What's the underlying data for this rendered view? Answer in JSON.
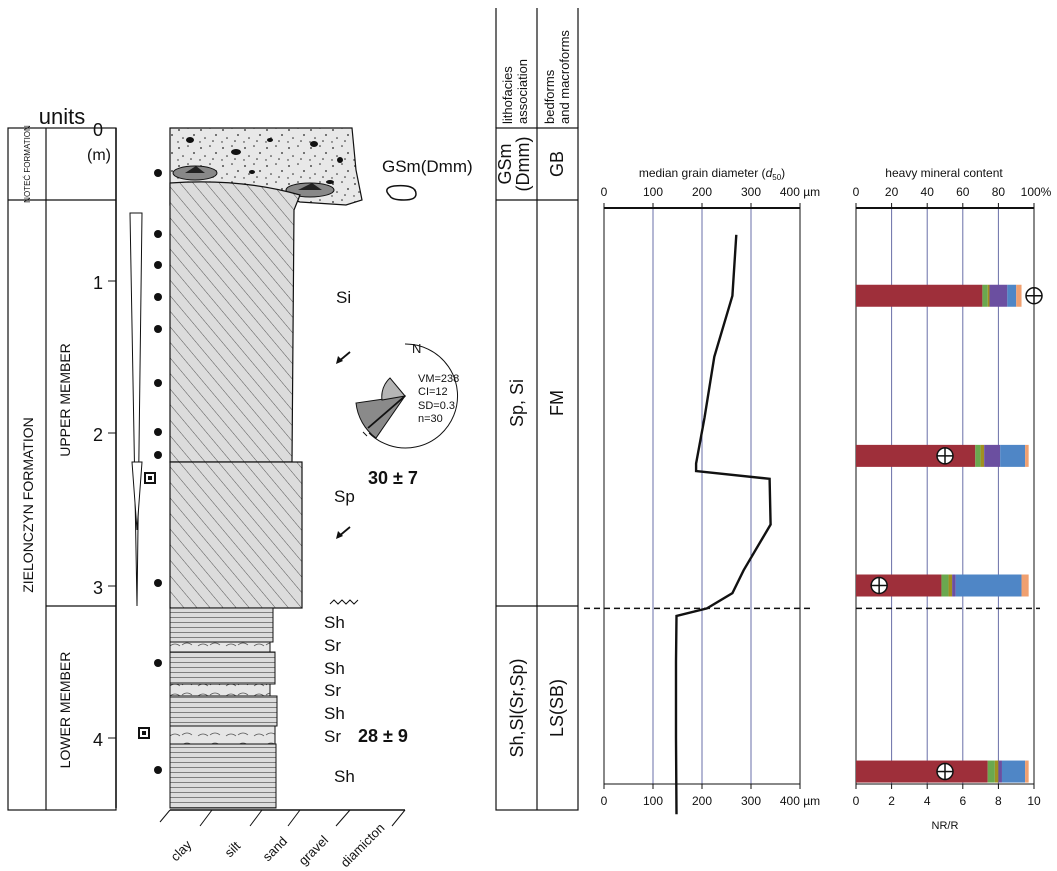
{
  "log": {
    "units_header": "units",
    "unit_noteć": "NOTEĆ FORMATION",
    "unit_zielonczyn": "ZIELONCZYN FORMATION",
    "member_upper": "UPPER MEMBER",
    "member_lower": "LOWER MEMBER",
    "depth_ticks": [
      "0",
      "1",
      "2",
      "3",
      "4"
    ],
    "depth_unit": "(m)",
    "grain_scale": [
      "clay",
      "silt",
      "sand",
      "gravel",
      "diamicton"
    ],
    "facies_labels": {
      "gsm": "GSm(Dmm)",
      "si": "Si",
      "sp": "Sp",
      "sh1": "Sh",
      "sr1": "Sr",
      "sh2": "Sh",
      "sr2": "Sr",
      "sh3": "Sh",
      "sr3": "Sr",
      "sh4": "Sh"
    },
    "dates": {
      "upper": "30 ± 7",
      "lower": "28 ± 9"
    },
    "paleocurrent": {
      "north": "N",
      "stats": [
        "VM=238",
        "CI=12",
        "SD=0.3",
        "n=30"
      ]
    }
  },
  "association_table": {
    "header_lithofacies": "lithofacies association",
    "header_bedforms": "bedforms and macroforms",
    "rows": [
      {
        "litho": "GSm (Dmm)",
        "bed": "GB"
      },
      {
        "litho": "Sp, Si",
        "bed": "FM"
      },
      {
        "litho": "Sh,Sl(Sr,Sp)",
        "bed": "LS(SB)"
      }
    ]
  },
  "chart_data": [
    {
      "type": "line",
      "title": "median grain diameter (d50)",
      "title_main": "median grain diameter (",
      "title_sym": "d",
      "title_sub": "50",
      "title_end": ")",
      "unit": "µm",
      "xlim": [
        0,
        400
      ],
      "ylim_depth_m": [
        0,
        4.5
      ],
      "x_ticks": [
        "0",
        "100",
        "200",
        "300",
        "400 µm"
      ],
      "depth_m": [
        0.7,
        1.1,
        1.5,
        1.9,
        2.2,
        2.25,
        2.3,
        2.6,
        2.9,
        3.05,
        3.15,
        3.2,
        3.5,
        4.0,
        4.5
      ],
      "d50_um": [
        270,
        262,
        225,
        205,
        188,
        188,
        338,
        340,
        285,
        262,
        210,
        148,
        147,
        147,
        148
      ],
      "boundary_depth_m": 3.15
    },
    {
      "type": "bar",
      "title": "heavy mineral content",
      "orientation": "horizontal-stacked",
      "xlim": [
        0,
        100
      ],
      "top_ticks": [
        "0",
        "20",
        "40",
        "60",
        "80",
        "100%"
      ],
      "bottom_ticks": [
        "0",
        "2",
        "4",
        "6",
        "8",
        "10"
      ],
      "bottom_label": "NR/R",
      "boundary_depth_m": 3.15,
      "colors": [
        "#9e2f3a",
        "#6aa84f",
        "#a09020",
        "#6b4fa0",
        "#4f86c6",
        "#f0a070"
      ],
      "samples": [
        {
          "depth_m": 1.1,
          "segments": [
            71,
            3,
            1,
            10,
            5,
            3
          ],
          "nr_r": 10
        },
        {
          "depth_m": 2.15,
          "segments": [
            67,
            3,
            2,
            9,
            14,
            2
          ],
          "nr_r": 5
        },
        {
          "depth_m": 3.0,
          "segments": [
            48,
            4,
            2,
            2,
            37,
            4
          ],
          "nr_r": 1.3
        },
        {
          "depth_m": 4.22,
          "segments": [
            74,
            4,
            2,
            2,
            13,
            2
          ],
          "nr_r": 5
        }
      ]
    }
  ]
}
